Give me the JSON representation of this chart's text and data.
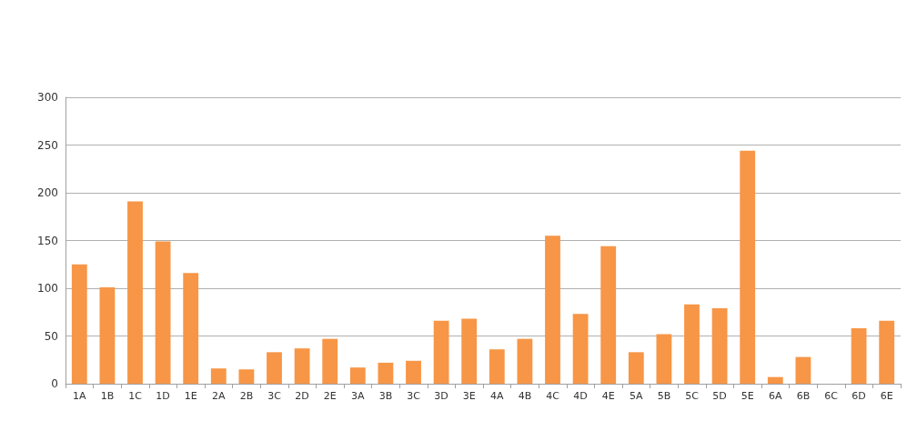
{
  "chart_data": {
    "type": "bar",
    "categories": [
      "1A",
      "1B",
      "1C",
      "1D",
      "1E",
      "2A",
      "2B",
      "3C",
      "2D",
      "2E",
      "3A",
      "3B",
      "3C",
      "3D",
      "3E",
      "4A",
      "4B",
      "4C",
      "4D",
      "4E",
      "5A",
      "5B",
      "5C",
      "5D",
      "5E",
      "6A",
      "6B",
      "6C",
      "6D",
      "6E"
    ],
    "values": [
      125,
      101,
      191,
      149,
      116,
      16,
      15,
      33,
      37,
      47,
      17,
      22,
      24,
      66,
      68,
      36,
      47,
      155,
      73,
      144,
      33,
      52,
      83,
      79,
      244,
      7,
      28,
      0,
      58,
      66
    ],
    "color": "#f79646",
    "ylim": [
      0,
      300
    ],
    "yticks": [
      0,
      50,
      100,
      150,
      200,
      250,
      300
    ],
    "grid": "y"
  }
}
